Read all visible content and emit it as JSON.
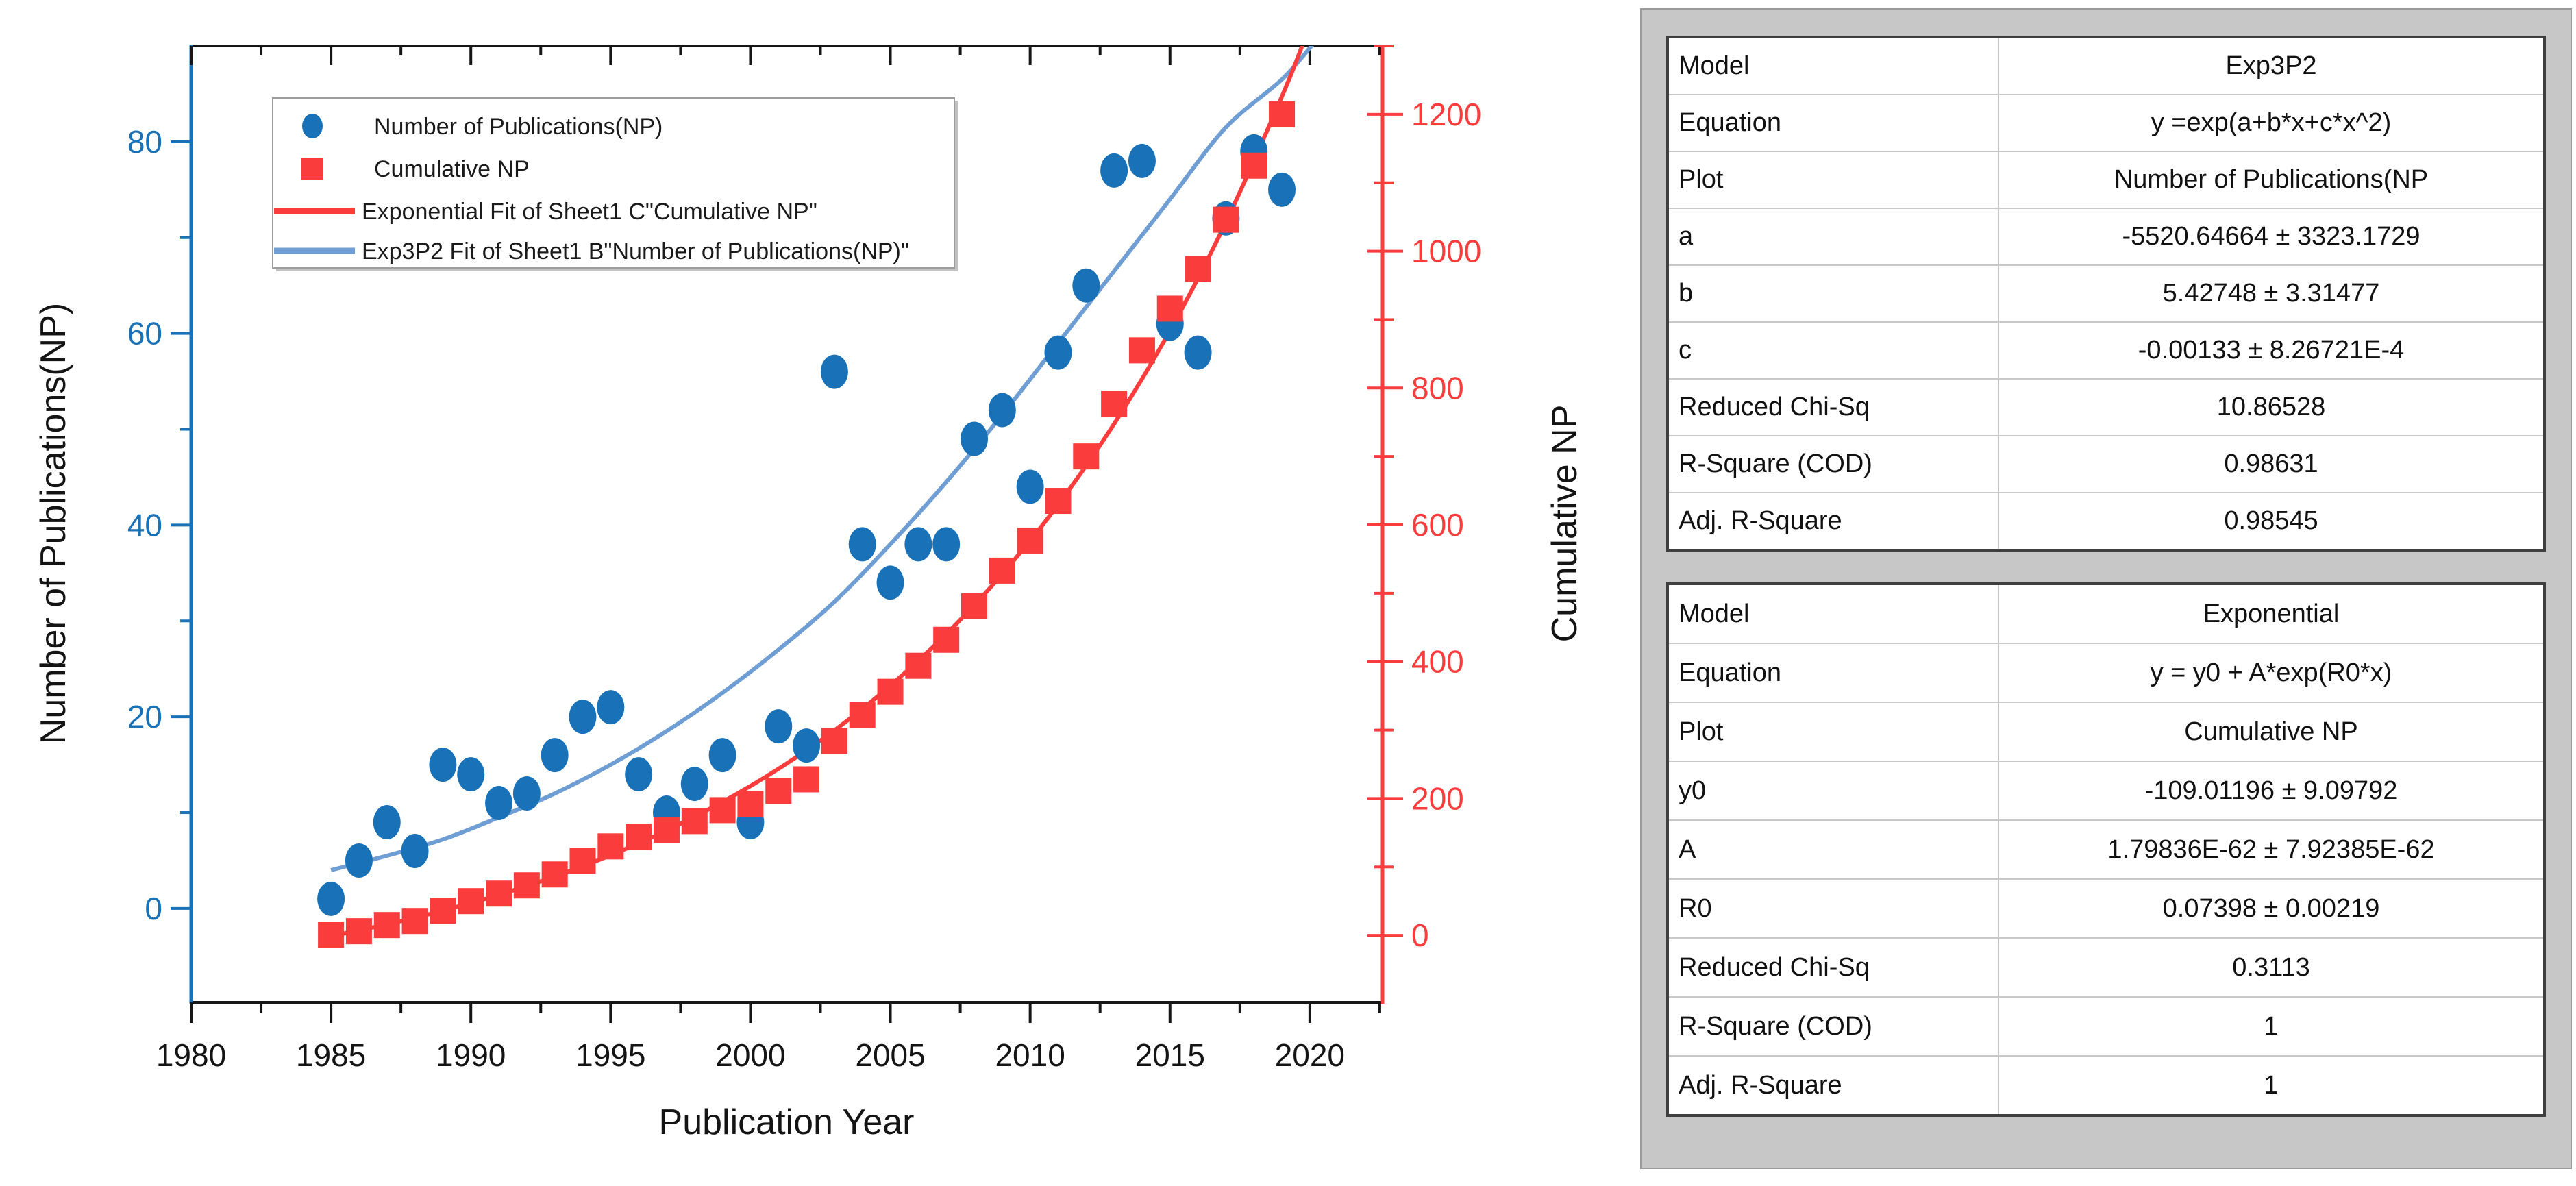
{
  "chart": {
    "xlabel": "Publication Year",
    "ylabel_left": "Number of Publications(NP)",
    "ylabel_right": "Cumulative NP",
    "axis_color_left": "#1971b7",
    "axis_color_right": "#fa3c3c",
    "axis_color_frame": "#161616",
    "legend": [
      {
        "label": "Number of Publications(NP)",
        "marker": "circle",
        "color": "#1971b7"
      },
      {
        "label": "Cumulative NP",
        "marker": "square",
        "color": "#fa3c3c"
      },
      {
        "label": "Exponential Fit of Sheet1 C\"Cumulative NP\"",
        "marker": "line",
        "color": "#fa3c3c"
      },
      {
        "label": "Exp3P2 Fit of Sheet1 B\"Number of Publications(NP)\"",
        "marker": "line",
        "color": "#6f9ed4"
      }
    ]
  },
  "chart_data": {
    "type": "scatter",
    "title": "",
    "xlabel": "Publication Year",
    "ylabel_left": "Number of Publications(NP)",
    "ylabel_right": "Cumulative NP",
    "grid": false,
    "legend_position": "top-left",
    "xlim": [
      1980,
      2022.6
    ],
    "ylim_left": [
      -9.8,
      90
    ],
    "ylim_right": [
      -98,
      1300
    ],
    "x_ticks_major": [
      1980,
      1985,
      1990,
      1995,
      2000,
      2005,
      2010,
      2015,
      2020
    ],
    "x_ticks_minor": [
      1982.5,
      1987.5,
      1992.5,
      1997.5,
      2002.5,
      2007.5,
      2012.5,
      2017.5,
      2022.5
    ],
    "y_ticks_left_major": [
      0,
      20,
      40,
      60,
      80
    ],
    "y_ticks_left_minor": [
      10,
      30,
      50,
      70
    ],
    "y_ticks_right_major": [
      0,
      200,
      400,
      600,
      800,
      1000,
      1200
    ],
    "y_ticks_right_minor": [
      100,
      300,
      500,
      700,
      900,
      1100,
      1300
    ],
    "years": [
      1985,
      1986,
      1987,
      1988,
      1989,
      1990,
      1991,
      1992,
      1993,
      1994,
      1995,
      1996,
      1997,
      1998,
      1999,
      2000,
      2001,
      2002,
      2003,
      2004,
      2005,
      2006,
      2007,
      2008,
      2009,
      2010,
      2011,
      2012,
      2013,
      2014,
      2015,
      2016,
      2017,
      2018,
      2019
    ],
    "series": [
      {
        "name": "Number of Publications(NP)",
        "type": "scatter",
        "marker": "circle",
        "axis": "left",
        "color": "#1971b7",
        "values": [
          1,
          5,
          9,
          6,
          15,
          14,
          11,
          12,
          16,
          20,
          21,
          14,
          10,
          13,
          16,
          9,
          19,
          17,
          56,
          38,
          34,
          38,
          38,
          49,
          52,
          44,
          58,
          65,
          77,
          78,
          61,
          58,
          72,
          79,
          75
        ]
      },
      {
        "name": "Cumulative NP",
        "type": "scatter",
        "marker": "square",
        "axis": "right",
        "color": "#fa3c3c",
        "values": [
          1,
          6,
          15,
          21,
          36,
          50,
          61,
          73,
          89,
          109,
          130,
          144,
          154,
          167,
          183,
          192,
          211,
          228,
          284,
          322,
          356,
          394,
          432,
          481,
          533,
          577,
          635,
          700,
          777,
          855,
          916,
          974,
          1046,
          1125,
          1200
        ]
      },
      {
        "name": "Exponential Fit of Sheet1 C\"Cumulative NP\"",
        "type": "line",
        "axis": "right",
        "color": "#fa3c3c",
        "x": [
          1985,
          1987,
          1989,
          1991,
          1993,
          1995,
          1997,
          1999,
          2001,
          2003,
          2005,
          2007,
          2009,
          2011,
          2013,
          2015,
          2017,
          2019,
          2019.8
        ],
        "y": [
          -1.1,
          16.1,
          36.1,
          59.2,
          86.0,
          117.1,
          153.2,
          195.0,
          243.4,
          299.6,
          364.9,
          440.4,
          528.0,
          629.6,
          747.4,
          884.0,
          1042.4,
          1226.0,
          1308.0
        ]
      },
      {
        "name": "Exp3P2 Fit of Sheet1 B\"Number of Publications(NP)\"",
        "type": "line",
        "axis": "left",
        "color": "#6f9ed4",
        "x": [
          1985,
          1987,
          1989,
          1991,
          1993,
          1995,
          1997,
          1999,
          2001,
          2003,
          2005,
          2007,
          2009,
          2011,
          2013,
          2015,
          2017,
          2019,
          2020.2
        ],
        "y": [
          4,
          5.5,
          7.2,
          9.5,
          12,
          15,
          18.5,
          22.5,
          27,
          32,
          38,
          44.5,
          51.5,
          59,
          66.5,
          74,
          81.5,
          86.5,
          90.5
        ]
      }
    ]
  },
  "fit_tables": [
    {
      "title": "Exp3P2 fit results",
      "rows": [
        [
          "Model",
          "Exp3P2"
        ],
        [
          "Equation",
          "y =exp(a+b*x+c*x^2)"
        ],
        [
          "Plot",
          "Number of Publications(NP"
        ],
        [
          "a",
          "-5520.64664 ± 3323.1729"
        ],
        [
          "b",
          "5.42748 ± 3.31477"
        ],
        [
          "c",
          "-0.00133 ± 8.26721E-4"
        ],
        [
          "Reduced Chi-Sq",
          "10.86528"
        ],
        [
          "R-Square (COD)",
          "0.98631"
        ],
        [
          "Adj. R-Square",
          "0.98545"
        ]
      ]
    },
    {
      "title": "Exponential fit results",
      "rows": [
        [
          "Model",
          "Exponential"
        ],
        [
          "Equation",
          "y = y0 + A*exp(R0*x)"
        ],
        [
          "Plot",
          "Cumulative NP"
        ],
        [
          "y0",
          "-109.01196 ± 9.09792"
        ],
        [
          "A",
          "1.79836E-62 ± 7.92385E-62"
        ],
        [
          "R0",
          "0.07398 ± 0.00219"
        ],
        [
          "Reduced Chi-Sq",
          "0.3113"
        ],
        [
          "R-Square (COD)",
          "1"
        ],
        [
          "Adj. R-Square",
          "1"
        ]
      ]
    }
  ],
  "panel": {
    "background": "#c7c7c7"
  }
}
